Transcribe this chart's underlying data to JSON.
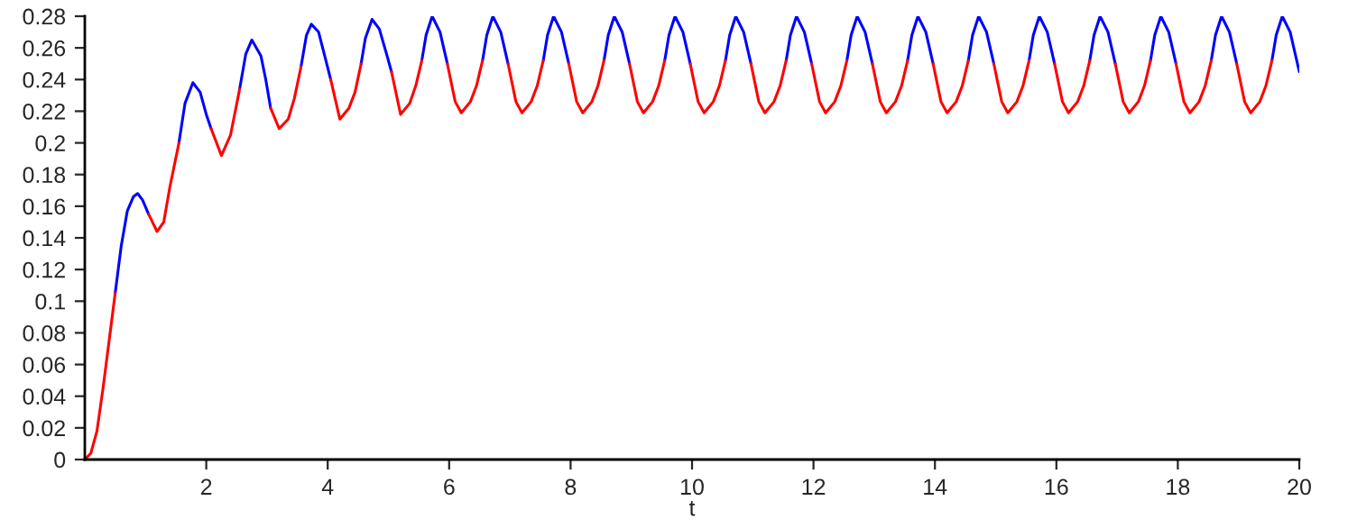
{
  "chart_data": {
    "type": "line",
    "xlabel": "t",
    "x": [
      0,
      0.1,
      0.2,
      0.3,
      0.4,
      0.5,
      0.6,
      0.7,
      0.8,
      0.87,
      0.95,
      1.05,
      1.19,
      1.3,
      1.4,
      1.55,
      1.65,
      1.78,
      1.9,
      2.0,
      2.08,
      2.25,
      2.4,
      2.55,
      2.65,
      2.75,
      2.9,
      2.98,
      3.06,
      3.2,
      3.35,
      3.45,
      3.56,
      3.65,
      3.73,
      3.85,
      3.97,
      4.05,
      4.2,
      4.35,
      4.45,
      4.55,
      4.62,
      4.73,
      4.85,
      4.97,
      5.05,
      5.2,
      5.35,
      5.45,
      5.55,
      5.62,
      5.72,
      5.85,
      5.97,
      6.1,
      6.2,
      6.35,
      6.45,
      6.55,
      6.62,
      6.72,
      6.85,
      6.97,
      7.1,
      7.2,
      7.35,
      7.45,
      7.55,
      7.62,
      7.72,
      7.85,
      7.97,
      8.1,
      8.2,
      8.35,
      8.45,
      8.55,
      8.62,
      8.72,
      8.85,
      8.97,
      9.1,
      9.2,
      9.35,
      9.45,
      9.55,
      9.62,
      9.72,
      9.85,
      9.97,
      10.1,
      10.2,
      10.35,
      10.45,
      10.55,
      10.62,
      10.72,
      10.85,
      10.97,
      11.1,
      11.2,
      11.35,
      11.45,
      11.55,
      11.62,
      11.72,
      11.85,
      11.97,
      12.1,
      12.2,
      12.35,
      12.45,
      12.55,
      12.62,
      12.72,
      12.85,
      12.97,
      13.1,
      13.2,
      13.35,
      13.45,
      13.55,
      13.62,
      13.72,
      13.85,
      13.97,
      14.1,
      14.2,
      14.35,
      14.45,
      14.55,
      14.62,
      14.72,
      14.85,
      14.97,
      15.1,
      15.2,
      15.35,
      15.45,
      15.55,
      15.62,
      15.72,
      15.85,
      15.97,
      16.1,
      16.2,
      16.35,
      16.45,
      16.55,
      16.62,
      16.72,
      16.85,
      16.97,
      17.1,
      17.2,
      17.35,
      17.45,
      17.55,
      17.62,
      17.72,
      17.85,
      17.97,
      18.1,
      18.2,
      18.35,
      18.45,
      18.55,
      18.62,
      18.72,
      18.85,
      18.97,
      19.1,
      19.2,
      19.35,
      19.45,
      19.55,
      19.62,
      19.72,
      19.85,
      20
    ],
    "series": [
      {
        "color": "#0000ff",
        "values": [
          null,
          null,
          null,
          null,
          null,
          0.105,
          0.135,
          0.157,
          0.166,
          0.168,
          0.164,
          0.155,
          null,
          null,
          null,
          0.2,
          0.225,
          0.238,
          0.232,
          0.218,
          0.209,
          null,
          null,
          0.234,
          0.256,
          0.265,
          0.255,
          0.24,
          0.222,
          null,
          null,
          null,
          0.248,
          0.268,
          0.275,
          0.27,
          0.252,
          0.24,
          null,
          null,
          null,
          0.25,
          0.266,
          0.278,
          0.272,
          0.256,
          0.245,
          null,
          null,
          null,
          0.252,
          0.268,
          0.28,
          0.27,
          0.25,
          null,
          null,
          null,
          null,
          0.252,
          0.268,
          0.28,
          0.27,
          0.25,
          null,
          null,
          null,
          null,
          0.252,
          0.268,
          0.28,
          0.27,
          0.25,
          null,
          null,
          null,
          null,
          0.252,
          0.268,
          0.28,
          0.27,
          0.25,
          null,
          null,
          null,
          null,
          0.252,
          0.268,
          0.28,
          0.27,
          0.25,
          null,
          null,
          null,
          null,
          0.252,
          0.268,
          0.28,
          0.27,
          0.25,
          null,
          null,
          null,
          null,
          0.252,
          0.268,
          0.28,
          0.27,
          0.25,
          null,
          null,
          null,
          null,
          0.252,
          0.268,
          0.28,
          0.27,
          0.25,
          null,
          null,
          null,
          null,
          0.252,
          0.268,
          0.28,
          0.27,
          0.25,
          null,
          null,
          null,
          null,
          0.252,
          0.268,
          0.28,
          0.27,
          0.25,
          null,
          null,
          null,
          null,
          0.252,
          0.268,
          0.28,
          0.27,
          0.25,
          null,
          null,
          null,
          null,
          0.252,
          0.268,
          0.28,
          0.27,
          0.25,
          null,
          null,
          null,
          null,
          0.252,
          0.268,
          0.28,
          0.27,
          0.25,
          null,
          null,
          null,
          null,
          0.252,
          0.268,
          0.28,
          0.27,
          0.25,
          null,
          null,
          null,
          null,
          0.252,
          0.268,
          0.28,
          0.27,
          0.245
        ]
      },
      {
        "color": "#ff0000",
        "values": [
          0,
          0.004,
          0.018,
          0.045,
          0.075,
          0.105,
          null,
          null,
          null,
          null,
          null,
          0.155,
          0.144,
          0.15,
          0.172,
          0.2,
          null,
          null,
          null,
          null,
          0.209,
          0.192,
          0.205,
          0.234,
          null,
          null,
          null,
          null,
          0.222,
          0.209,
          0.215,
          0.228,
          0.248,
          null,
          null,
          null,
          null,
          0.24,
          0.215,
          0.222,
          0.232,
          0.25,
          null,
          null,
          null,
          null,
          0.245,
          0.218,
          0.225,
          0.236,
          0.252,
          null,
          null,
          null,
          0.25,
          0.226,
          0.219,
          0.226,
          0.236,
          0.252,
          null,
          null,
          null,
          0.25,
          0.226,
          0.219,
          0.226,
          0.236,
          0.252,
          null,
          null,
          null,
          0.25,
          0.226,
          0.219,
          0.226,
          0.236,
          0.252,
          null,
          null,
          null,
          0.25,
          0.226,
          0.219,
          0.226,
          0.236,
          0.252,
          null,
          null,
          null,
          0.25,
          0.226,
          0.219,
          0.226,
          0.236,
          0.252,
          null,
          null,
          null,
          0.25,
          0.226,
          0.219,
          0.226,
          0.236,
          0.252,
          null,
          null,
          null,
          0.25,
          0.226,
          0.219,
          0.226,
          0.236,
          0.252,
          null,
          null,
          null,
          0.25,
          0.226,
          0.219,
          0.226,
          0.236,
          0.252,
          null,
          null,
          null,
          0.25,
          0.226,
          0.219,
          0.226,
          0.236,
          0.252,
          null,
          null,
          null,
          0.25,
          0.226,
          0.219,
          0.226,
          0.236,
          0.252,
          null,
          null,
          null,
          0.25,
          0.226,
          0.219,
          0.226,
          0.236,
          0.252,
          null,
          null,
          null,
          0.25,
          0.226,
          0.219,
          0.226,
          0.236,
          0.252,
          null,
          null,
          null,
          0.25,
          0.226,
          0.219,
          0.226,
          0.236,
          0.252,
          null,
          null,
          null,
          0.25,
          0.226,
          0.219,
          0.226,
          0.236,
          0.252,
          null,
          null,
          null,
          null
        ]
      }
    ],
    "xlim": [
      0,
      20
    ],
    "ylim": [
      0,
      0.28
    ],
    "xticks": [
      2,
      4,
      6,
      8,
      10,
      12,
      14,
      16,
      18,
      20
    ],
    "yticks": [
      0,
      0.02,
      0.04,
      0.06,
      0.08,
      0.1,
      0.12,
      0.14,
      0.16,
      0.18,
      0.2,
      0.22,
      0.24,
      0.26,
      0.28
    ],
    "grid": false,
    "legend": false,
    "marker": "none",
    "line_style": "solid"
  }
}
